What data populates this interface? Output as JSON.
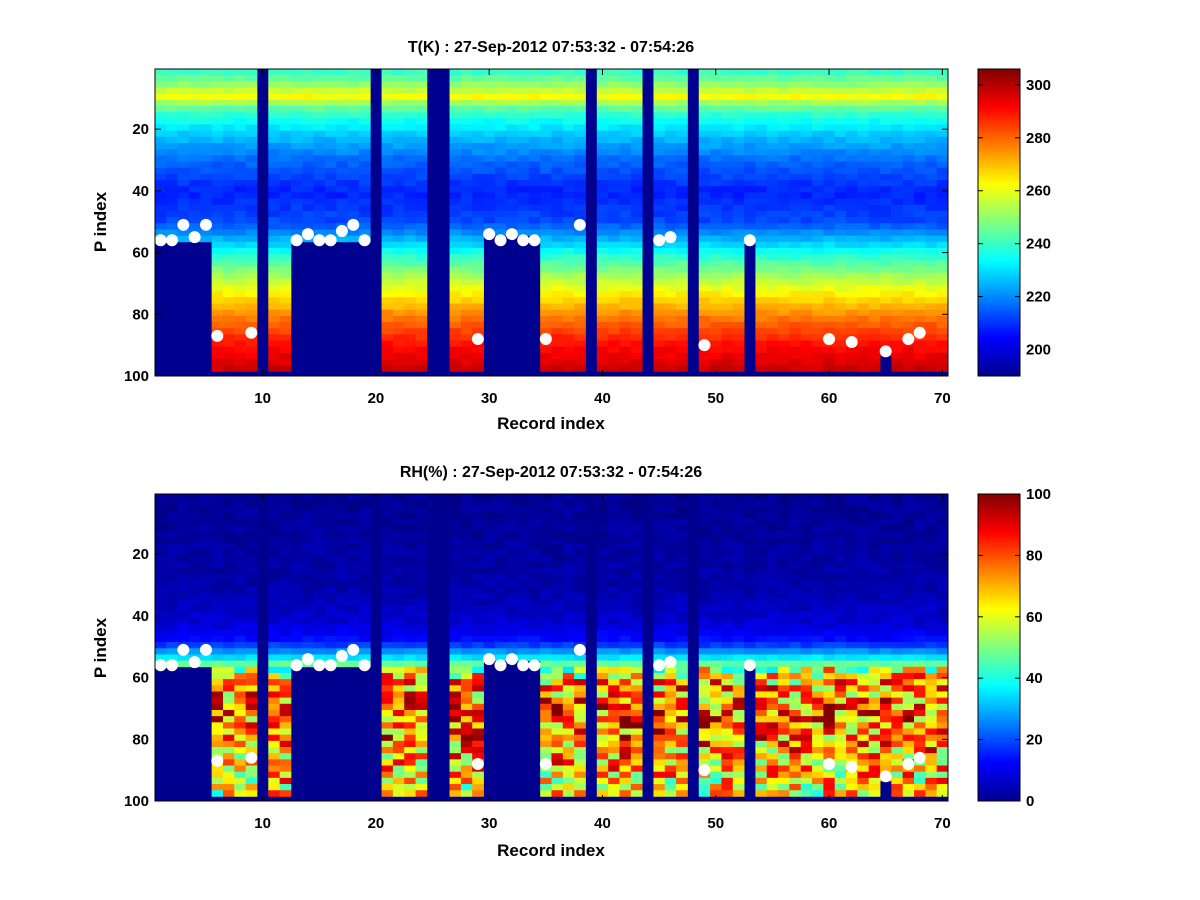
{
  "chart_data": [
    {
      "type": "heatmap",
      "title": "T(K) : 27-Sep-2012 07:53:32 - 07:54:26",
      "xlabel": "Record index",
      "ylabel": "P index",
      "xlim": [
        0.5,
        70.5
      ],
      "ylim": [
        100,
        0.5
      ],
      "xticks": [
        10,
        20,
        30,
        40,
        50,
        60,
        70
      ],
      "yticks": [
        20,
        40,
        60,
        80,
        100
      ],
      "colorbar": {
        "range": [
          190,
          306
        ],
        "ticks": [
          200,
          220,
          240,
          260,
          280,
          300
        ]
      },
      "colormap": "jet",
      "missing_records": [
        10,
        20,
        25,
        26,
        39,
        44,
        48
      ],
      "ground_level_record_index": [
        1,
        2,
        3,
        4,
        5,
        6,
        7,
        8,
        9,
        10,
        11,
        12,
        13,
        14,
        15,
        16,
        17,
        18,
        19,
        20,
        21,
        22,
        23,
        24,
        25,
        26,
        27,
        28,
        29,
        30,
        31,
        32,
        33,
        34,
        35,
        36,
        37,
        38,
        39,
        40,
        41,
        42,
        43,
        44,
        45,
        46,
        47,
        48,
        49,
        50,
        51,
        52,
        53,
        54,
        55,
        56,
        57,
        58,
        59,
        60,
        61,
        62,
        63,
        64,
        65,
        66,
        67,
        68,
        69,
        70
      ],
      "ground_level_p_index": [
        98,
        98,
        98,
        98,
        98,
        98,
        98,
        98,
        98,
        98,
        98,
        98,
        98,
        98,
        98,
        98,
        98,
        98,
        98,
        98,
        98,
        98,
        98,
        98,
        98,
        98,
        98,
        98,
        98,
        98,
        98,
        98,
        98,
        98,
        98,
        98,
        98,
        98,
        98,
        98,
        98,
        98,
        98,
        98,
        98,
        98,
        98,
        98,
        98,
        98,
        98,
        98,
        98,
        98,
        98,
        98,
        98,
        98,
        98,
        98,
        98,
        98,
        98,
        98,
        93,
        98,
        98,
        98,
        98,
        98
      ],
      "masked_blocks": [
        {
          "records": [
            1,
            5
          ],
          "p_from": 56,
          "p_to": 100
        },
        {
          "records": [
            13,
            19
          ],
          "p_from": 56,
          "p_to": 100
        },
        {
          "records": [
            30,
            34
          ],
          "p_from": 54,
          "p_to": 100
        },
        {
          "records": [
            53,
            53
          ],
          "p_from": 56,
          "p_to": 100
        }
      ],
      "marker_points": {
        "x": [
          1,
          2,
          3,
          4,
          5,
          6,
          9,
          13,
          14,
          15,
          16,
          17,
          18,
          19,
          29,
          30,
          31,
          32,
          33,
          34,
          35,
          38,
          45,
          46,
          49,
          53,
          60,
          62,
          65,
          67,
          68
        ],
        "y": [
          56,
          56,
          51,
          55,
          51,
          87,
          86,
          56,
          54,
          56,
          56,
          53,
          51,
          56,
          88,
          54,
          56,
          54,
          56,
          56,
          88,
          51,
          56,
          55,
          90,
          56,
          88,
          89,
          92,
          88,
          86
        ]
      },
      "profile": {
        "p_index": [
          1,
          5,
          9,
          12,
          16,
          22,
          30,
          40,
          50,
          58,
          66,
          74,
          82,
          90,
          98
        ],
        "temperature_k": [
          240,
          250,
          262,
          247,
          236,
          226,
          216,
          208,
          213,
          232,
          250,
          266,
          280,
          291,
          298
        ]
      }
    },
    {
      "type": "heatmap",
      "title": "RH(%) : 27-Sep-2012 07:53:32 - 07:54:26",
      "xlabel": "Record index",
      "ylabel": "P index",
      "xlim": [
        0.5,
        70.5
      ],
      "ylim": [
        100,
        0.5
      ],
      "xticks": [
        10,
        20,
        30,
        40,
        50,
        60,
        70
      ],
      "yticks": [
        20,
        40,
        60,
        80,
        100
      ],
      "colorbar": {
        "range": [
          0,
          100
        ],
        "ticks": [
          0,
          20,
          40,
          60,
          80,
          100
        ]
      },
      "colormap": "jet",
      "missing_records": [
        10,
        20,
        25,
        26,
        39,
        44,
        48
      ],
      "ground_level_record_index": [
        1,
        2,
        3,
        4,
        5,
        6,
        7,
        8,
        9,
        10,
        11,
        12,
        13,
        14,
        15,
        16,
        17,
        18,
        19,
        20,
        21,
        22,
        23,
        24,
        25,
        26,
        27,
        28,
        29,
        30,
        31,
        32,
        33,
        34,
        35,
        36,
        37,
        38,
        39,
        40,
        41,
        42,
        43,
        44,
        45,
        46,
        47,
        48,
        49,
        50,
        51,
        52,
        53,
        54,
        55,
        56,
        57,
        58,
        59,
        60,
        61,
        62,
        63,
        64,
        65,
        66,
        67,
        68,
        69,
        70
      ],
      "ground_level_p_index": [
        98,
        98,
        98,
        98,
        98,
        98,
        98,
        98,
        98,
        98,
        98,
        98,
        98,
        98,
        98,
        98,
        98,
        98,
        98,
        98,
        98,
        98,
        98,
        98,
        98,
        98,
        98,
        98,
        98,
        98,
        98,
        98,
        98,
        98,
        98,
        98,
        98,
        98,
        98,
        98,
        98,
        98,
        98,
        98,
        98,
        98,
        98,
        98,
        98,
        98,
        98,
        98,
        98,
        98,
        98,
        98,
        98,
        98,
        98,
        98,
        98,
        98,
        98,
        98,
        93,
        98,
        98,
        98,
        98,
        98
      ],
      "masked_blocks": [
        {
          "records": [
            1,
            5
          ],
          "p_from": 56,
          "p_to": 100
        },
        {
          "records": [
            13,
            19
          ],
          "p_from": 56,
          "p_to": 100
        },
        {
          "records": [
            30,
            34
          ],
          "p_from": 54,
          "p_to": 100
        },
        {
          "records": [
            53,
            53
          ],
          "p_from": 56,
          "p_to": 100
        }
      ],
      "marker_points": {
        "x": [
          1,
          2,
          3,
          4,
          5,
          6,
          9,
          13,
          14,
          15,
          16,
          17,
          18,
          19,
          29,
          30,
          31,
          32,
          33,
          34,
          35,
          38,
          45,
          46,
          49,
          53,
          60,
          62,
          65,
          67,
          68
        ],
        "y": [
          56,
          56,
          51,
          55,
          51,
          87,
          86,
          56,
          54,
          56,
          56,
          53,
          51,
          56,
          88,
          54,
          56,
          54,
          56,
          56,
          88,
          51,
          56,
          55,
          90,
          56,
          88,
          89,
          92,
          88,
          86
        ]
      },
      "profile": {
        "p_index": [
          1,
          30,
          42,
          48,
          53,
          57,
          62,
          68,
          74,
          80,
          86,
          92,
          98
        ],
        "rh_percent": [
          2,
          4,
          8,
          14,
          35,
          60,
          72,
          76,
          78,
          75,
          70,
          66,
          62
        ]
      }
    }
  ]
}
